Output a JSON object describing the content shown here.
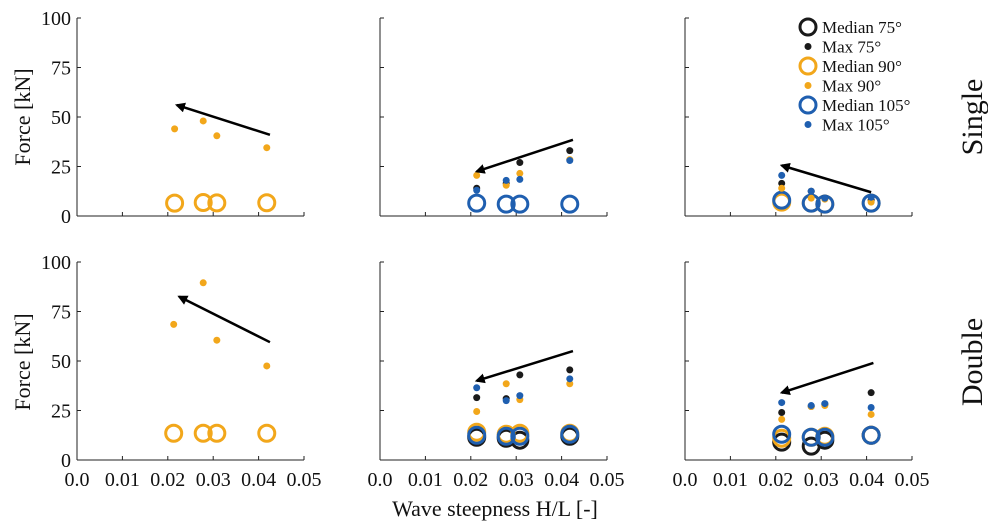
{
  "chart_data": {
    "type": "scatter",
    "xlabel": "Wave steepness H/L [-]",
    "ylabel": "Force [kN]",
    "xlim": [
      0,
      0.05
    ],
    "ylim": [
      0,
      100
    ],
    "xticks": [
      "0.0",
      "0.01",
      "0.02",
      "0.03",
      "0.04",
      "0.05"
    ],
    "yticks": [
      "0",
      "25",
      "50",
      "75",
      "100"
    ],
    "grid": false,
    "legend_position": "top-right",
    "row_labels": [
      "Single",
      "Double"
    ],
    "legend": [
      {
        "label": "Median 75°",
        "series": "median75"
      },
      {
        "label": "Max 75°",
        "series": "max75"
      },
      {
        "label": "Median 90°",
        "series": "median90"
      },
      {
        "label": "Max 90°",
        "series": "max90"
      },
      {
        "label": "Median 105°",
        "series": "median105"
      },
      {
        "label": "Max 105°",
        "series": "max105"
      }
    ],
    "styles": {
      "median75": {
        "color": "#1a1a1a",
        "marker": "open-circle"
      },
      "max75": {
        "color": "#1a1a1a",
        "marker": "dot"
      },
      "median90": {
        "color": "#f2a71b",
        "marker": "open-circle"
      },
      "max90": {
        "color": "#f2a71b",
        "marker": "dot"
      },
      "median105": {
        "color": "#1f5fb0",
        "marker": "open-circle"
      },
      "max105": {
        "color": "#1f5fb0",
        "marker": "dot"
      }
    },
    "panels": [
      {
        "row": 0,
        "col": 0,
        "arrow": {
          "from": [
            0.0425,
            41
          ],
          "to": [
            0.022,
            56
          ]
        },
        "series": [
          {
            "key": "max90",
            "x": [
              0.0215,
              0.0278,
              0.0308,
              0.0418
            ],
            "y": [
              44,
              48,
              40.5,
              34.5
            ]
          },
          {
            "key": "median90",
            "x": [
              0.0215,
              0.0278,
              0.0308,
              0.0418
            ],
            "y": [
              6.5,
              6.8,
              6.6,
              6.7
            ]
          }
        ]
      },
      {
        "row": 0,
        "col": 1,
        "arrow": {
          "from": [
            0.0425,
            38.5
          ],
          "to": [
            0.0213,
            22.5
          ]
        },
        "series": [
          {
            "key": "max75",
            "x": [
              0.0213,
              0.0278,
              0.0308,
              0.0418
            ],
            "y": [
              14,
              16.5,
              27,
              33
            ]
          },
          {
            "key": "max90",
            "x": [
              0.0213,
              0.0278,
              0.0308,
              0.0418
            ],
            "y": [
              20.5,
              15.5,
              21.5,
              28.5
            ]
          },
          {
            "key": "max105",
            "x": [
              0.0213,
              0.0278,
              0.0308,
              0.0418
            ],
            "y": [
              13,
              18,
              18.5,
              28
            ]
          },
          {
            "key": "median105",
            "x": [
              0.0213,
              0.0278,
              0.0308,
              0.0418
            ],
            "y": [
              6.5,
              6,
              6,
              6
            ]
          }
        ]
      },
      {
        "row": 0,
        "col": 2,
        "arrow": {
          "from": [
            0.041,
            12
          ],
          "to": [
            0.0213,
            25.5
          ]
        },
        "series": [
          {
            "key": "max75",
            "x": [
              0.0213,
              0.0278,
              0.0308,
              0.041
            ],
            "y": [
              16.5,
              12.5,
              9,
              8
            ]
          },
          {
            "key": "max90",
            "x": [
              0.0213,
              0.0278,
              0.0308,
              0.041
            ],
            "y": [
              14,
              9,
              8.5,
              7
            ]
          },
          {
            "key": "max105",
            "x": [
              0.0213,
              0.0278,
              0.0308,
              0.041
            ],
            "y": [
              20.5,
              12.5,
              9,
              9.5
            ]
          },
          {
            "key": "median90",
            "x": [
              0.0213,
              0.0278,
              0.0308,
              0.041
            ],
            "y": [
              7,
              6.5,
              6,
              6.5
            ]
          },
          {
            "key": "median105",
            "x": [
              0.0213,
              0.0278,
              0.0308,
              0.041
            ],
            "y": [
              8,
              6.5,
              6,
              6.5
            ]
          }
        ]
      },
      {
        "row": 1,
        "col": 0,
        "arrow": {
          "from": [
            0.0425,
            59.5
          ],
          "to": [
            0.0225,
            82.5
          ]
        },
        "series": [
          {
            "key": "max90",
            "x": [
              0.0213,
              0.0278,
              0.0308,
              0.0418
            ],
            "y": [
              68.5,
              89.5,
              60.5,
              47.5
            ]
          },
          {
            "key": "median90",
            "x": [
              0.0213,
              0.0278,
              0.0308,
              0.0418
            ],
            "y": [
              13.5,
              13.5,
              13.5,
              13.5
            ]
          }
        ]
      },
      {
        "row": 1,
        "col": 1,
        "arrow": {
          "from": [
            0.0425,
            55
          ],
          "to": [
            0.0213,
            40
          ]
        },
        "series": [
          {
            "key": "max75",
            "x": [
              0.0213,
              0.0278,
              0.0308,
              0.0418
            ],
            "y": [
              31.5,
              31,
              43,
              45.5
            ]
          },
          {
            "key": "max90",
            "x": [
              0.0213,
              0.0278,
              0.0308,
              0.0418
            ],
            "y": [
              24.5,
              38.5,
              30.5,
              38.5
            ]
          },
          {
            "key": "max105",
            "x": [
              0.0213,
              0.0278,
              0.0308,
              0.0418
            ],
            "y": [
              36.5,
              30,
              32.5,
              41
            ]
          },
          {
            "key": "median75",
            "x": [
              0.0213,
              0.0278,
              0.0308,
              0.0418
            ],
            "y": [
              11.5,
              11,
              10,
              12
            ]
          },
          {
            "key": "median90",
            "x": [
              0.0213,
              0.0278,
              0.0308,
              0.0418
            ],
            "y": [
              14,
              13,
              13.5,
              13.5
            ]
          },
          {
            "key": "median105",
            "x": [
              0.0213,
              0.0278,
              0.0308,
              0.0418
            ],
            "y": [
              12.5,
              12,
              12,
              13
            ]
          }
        ]
      },
      {
        "row": 1,
        "col": 2,
        "arrow": {
          "from": [
            0.0415,
            49
          ],
          "to": [
            0.0213,
            34
          ]
        },
        "series": [
          {
            "key": "max75",
            "x": [
              0.0213,
              0.0278,
              0.0308,
              0.041
            ],
            "y": [
              24,
              27,
              28,
              34
            ]
          },
          {
            "key": "max90",
            "x": [
              0.0213,
              0.0278,
              0.0308,
              0.041
            ],
            "y": [
              20.5,
              27,
              27.5,
              23
            ]
          },
          {
            "key": "max105",
            "x": [
              0.0213,
              0.0278,
              0.0308,
              0.041
            ],
            "y": [
              29,
              27.5,
              28.5,
              26.5
            ]
          },
          {
            "key": "median75",
            "x": [
              0.0213,
              0.0278,
              0.0308,
              0.041
            ],
            "y": [
              9,
              7,
              10,
              12.5
            ]
          },
          {
            "key": "median90",
            "x": [
              0.0213,
              0.0278,
              0.0308,
              0.041
            ],
            "y": [
              11,
              11.5,
              12,
              12.5
            ]
          },
          {
            "key": "median105",
            "x": [
              0.0213,
              0.0278,
              0.0308,
              0.041
            ],
            "y": [
              13,
              11.5,
              11.5,
              12.5
            ]
          }
        ]
      }
    ]
  }
}
